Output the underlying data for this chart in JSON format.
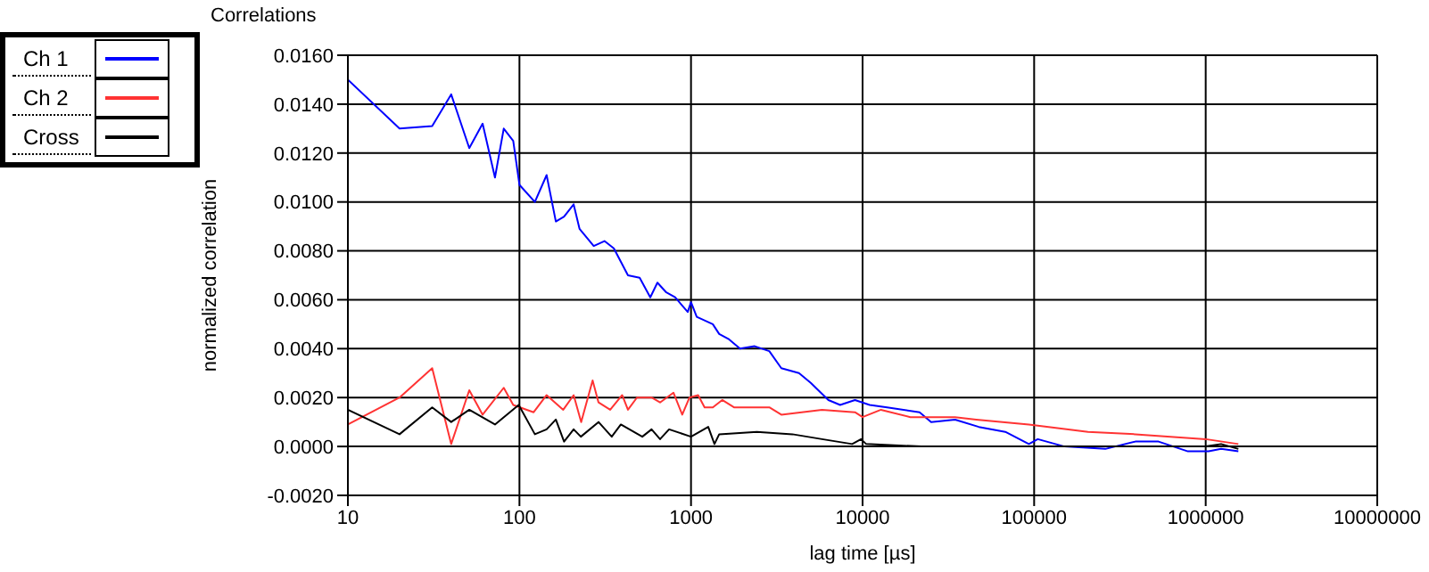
{
  "chart_data": {
    "type": "line",
    "title": "Correlations",
    "xlabel": "lag time [µs]",
    "ylabel": "normalized correlation",
    "log": "x",
    "grid": true,
    "legend": "top left",
    "xlim": [
      10,
      10000000
    ],
    "xticks": [
      10,
      100,
      1000,
      10000,
      100000,
      1000000,
      10000000
    ],
    "ylim": [
      -0.002,
      0.016
    ],
    "yticks": [
      {
        "value": -0.002,
        "label": "-0.0020"
      },
      {
        "value": 0,
        "label": "0.0000"
      },
      {
        "value": 0.002,
        "label": "0.0020"
      },
      {
        "value": 0.004,
        "label": "0.0040"
      },
      {
        "value": 0.006,
        "label": "0.0060"
      },
      {
        "value": 0.008,
        "label": "0.0080"
      },
      {
        "value": 0.01,
        "label": "0.0100"
      },
      {
        "value": 0.012,
        "label": "0.0120"
      },
      {
        "value": 0.014,
        "label": "0.0140"
      },
      {
        "value": 0.016,
        "label": "0.0160"
      }
    ],
    "series": [
      {
        "name": "Ch 1",
        "color": "#0000ff",
        "x": [
          10,
          20,
          31,
          40,
          51,
          61,
          72,
          81,
          92,
          100,
          123,
          144,
          163,
          182,
          207,
          224,
          271,
          313,
          355,
          429,
          502,
          579,
          637,
          718,
          808,
          957,
          1000,
          1080,
          1340,
          1460,
          1650,
          1930,
          2350,
          2860,
          3360,
          4260,
          4990,
          6320,
          7400,
          9030,
          11000,
          13900,
          21500,
          25100,
          34600,
          47600,
          67900,
          93200,
          105000,
          150000,
          260000,
          389000,
          531000,
          788000,
          1040000,
          1230000,
          1550000
        ],
        "values": [
          0.015,
          0.013,
          0.0131,
          0.0144,
          0.0122,
          0.0132,
          0.011,
          0.013,
          0.0125,
          0.0107,
          0.01,
          0.0111,
          0.0092,
          0.0094,
          0.0099,
          0.0089,
          0.0082,
          0.0084,
          0.0081,
          0.007,
          0.0069,
          0.0061,
          0.0067,
          0.0063,
          0.0061,
          0.0055,
          0.0059,
          0.0053,
          0.005,
          0.0046,
          0.0044,
          0.004,
          0.0041,
          0.0039,
          0.0032,
          0.003,
          0.0026,
          0.0019,
          0.0017,
          0.0019,
          0.0017,
          0.0016,
          0.0014,
          0.001,
          0.0011,
          0.0008,
          0.0006,
          0.0001,
          0.0003,
          0,
          -0.0001,
          0.0002,
          0.0002,
          -0.0002,
          -0.0002,
          -0.0001,
          -0.0002
        ]
      },
      {
        "name": "Ch 2",
        "color": "#ff3333",
        "x": [
          10,
          20,
          31,
          40,
          51,
          61,
          81,
          92,
          121,
          144,
          180,
          207,
          229,
          267,
          289,
          338,
          397,
          429,
          484,
          589,
          660,
          790,
          889,
          980,
          1100,
          1200,
          1340,
          1520,
          1780,
          2350,
          2860,
          3360,
          5800,
          9030,
          10000,
          12800,
          19000,
          34600,
          46000,
          93200,
          206000,
          389000,
          1000000,
          1550000
        ],
        "values": [
          0.0009,
          0.002,
          0.0032,
          0.0001,
          0.0023,
          0.0013,
          0.0024,
          0.0017,
          0.0014,
          0.0021,
          0.0015,
          0.0021,
          0.001,
          0.0027,
          0.0018,
          0.0015,
          0.0021,
          0.0015,
          0.002,
          0.002,
          0.0018,
          0.0022,
          0.0013,
          0.002,
          0.0021,
          0.0016,
          0.0016,
          0.0019,
          0.0016,
          0.0016,
          0.0016,
          0.0013,
          0.0015,
          0.0014,
          0.0012,
          0.0015,
          0.0012,
          0.0012,
          0.0011,
          0.0009,
          0.0006,
          0.0005,
          0.0003,
          0.0001
        ]
      },
      {
        "name": "Cross",
        "color": "#000000",
        "x": [
          10,
          20,
          31,
          40,
          51,
          72,
          99,
          123,
          144,
          163,
          182,
          207,
          228,
          289,
          345,
          390,
          520,
          589,
          660,
          745,
          1000,
          1260,
          1370,
          1460,
          2420,
          3900,
          5800,
          8700,
          9800,
          10500,
          22000,
          93200,
          1000000,
          1230000,
          1550000
        ],
        "values": [
          0.0015,
          0.0005,
          0.0016,
          0.001,
          0.0015,
          0.0009,
          0.0017,
          0.0005,
          0.0007,
          0.0011,
          0.0002,
          0.0007,
          0.0004,
          0.001,
          0.0004,
          0.0009,
          0.0004,
          0.0007,
          0.0003,
          0.0007,
          0.0004,
          0.0008,
          0.0001,
          0.0005,
          0.0006,
          0.0005,
          0.0003,
          0.0001,
          0.0003,
          0.0001,
          0,
          0,
          0,
          0.0001,
          -0.0001
        ]
      }
    ]
  }
}
